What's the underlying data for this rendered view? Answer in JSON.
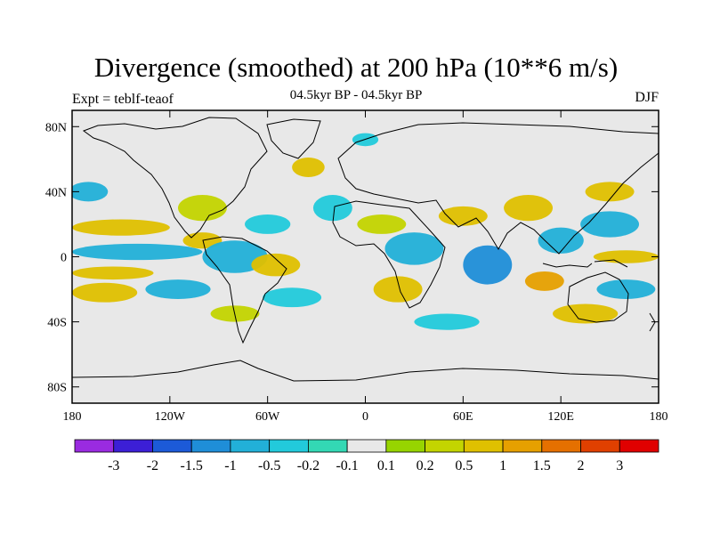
{
  "title": "Divergence (smoothed) at 200 hPa (10**6 m/s)",
  "left_label": "Expt = teblf-teaof",
  "center_label": "04.5kyr BP - 04.5kyr BP",
  "right_label": "DJF",
  "chart_data": {
    "type": "heatmap",
    "title": "Divergence (smoothed) at 200 hPa (10**6 m/s)",
    "xlim": [
      -180,
      180
    ],
    "ylim": [
      -90,
      90
    ],
    "y_ticks": [
      {
        "value": 80,
        "label": "80N"
      },
      {
        "value": 40,
        "label": "40N"
      },
      {
        "value": 0,
        "label": "0"
      },
      {
        "value": -40,
        "label": "40S"
      },
      {
        "value": -80,
        "label": "80S"
      }
    ],
    "x_ticks": [
      {
        "value": -180,
        "label": "180"
      },
      {
        "value": -120,
        "label": "120W"
      },
      {
        "value": -60,
        "label": "60W"
      },
      {
        "value": 0,
        "label": "0"
      },
      {
        "value": 60,
        "label": "60E"
      },
      {
        "value": 120,
        "label": "120E"
      },
      {
        "value": 180,
        "label": "180"
      }
    ],
    "colorbar": {
      "labels": [
        "-3",
        "-2",
        "-1.5",
        "-1",
        "-0.5",
        "-0.2",
        "-0.1",
        "0.1",
        "0.2",
        "0.5",
        "1",
        "1.5",
        "2",
        "3"
      ],
      "colors": [
        "#9a2be0",
        "#3c1fd6",
        "#1c5ad8",
        "#1f8ed8",
        "#22b0d8",
        "#22cadb",
        "#33d8b4",
        "#e8e8e8",
        "#97d400",
        "#c3d400",
        "#dfc000",
        "#e6a000",
        "#e57000",
        "#e04000",
        "#e00000"
      ]
    },
    "regions": [
      {
        "lon": -150,
        "lat": 18,
        "rx": 30,
        "ry": 5,
        "level": "0.5"
      },
      {
        "lon": -140,
        "lat": 3,
        "rx": 40,
        "ry": 5,
        "level": "-0.5"
      },
      {
        "lon": -155,
        "lat": -10,
        "rx": 25,
        "ry": 4,
        "level": "0.5"
      },
      {
        "lon": -160,
        "lat": -22,
        "rx": 20,
        "ry": 6,
        "level": "0.5"
      },
      {
        "lon": -170,
        "lat": 40,
        "rx": 12,
        "ry": 6,
        "level": "-0.5"
      },
      {
        "lon": -115,
        "lat": -20,
        "rx": 20,
        "ry": 6,
        "level": "-0.5"
      },
      {
        "lon": -100,
        "lat": 10,
        "rx": 12,
        "ry": 5,
        "level": "0.5"
      },
      {
        "lon": -80,
        "lat": 0,
        "rx": 20,
        "ry": 10,
        "level": "-0.5"
      },
      {
        "lon": -100,
        "lat": 30,
        "rx": 15,
        "ry": 8,
        "level": "0.2"
      },
      {
        "lon": -60,
        "lat": 20,
        "rx": 14,
        "ry": 6,
        "level": "-0.2"
      },
      {
        "lon": -55,
        "lat": -5,
        "rx": 15,
        "ry": 7,
        "level": "0.5"
      },
      {
        "lon": -45,
        "lat": -25,
        "rx": 18,
        "ry": 6,
        "level": "-0.2"
      },
      {
        "lon": -80,
        "lat": -35,
        "rx": 15,
        "ry": 5,
        "level": "0.2"
      },
      {
        "lon": -35,
        "lat": 55,
        "rx": 10,
        "ry": 6,
        "level": "0.5"
      },
      {
        "lon": 0,
        "lat": 72,
        "rx": 8,
        "ry": 4,
        "level": "-0.2"
      },
      {
        "lon": -20,
        "lat": 30,
        "rx": 12,
        "ry": 8,
        "level": "-0.2"
      },
      {
        "lon": 10,
        "lat": 20,
        "rx": 15,
        "ry": 6,
        "level": "0.2"
      },
      {
        "lon": 30,
        "lat": 5,
        "rx": 18,
        "ry": 10,
        "level": "-0.5"
      },
      {
        "lon": 20,
        "lat": -20,
        "rx": 15,
        "ry": 8,
        "level": "0.5"
      },
      {
        "lon": 50,
        "lat": -40,
        "rx": 20,
        "ry": 5,
        "level": "-0.2"
      },
      {
        "lon": 75,
        "lat": -5,
        "rx": 15,
        "ry": 12,
        "level": "-1"
      },
      {
        "lon": 60,
        "lat": 25,
        "rx": 15,
        "ry": 6,
        "level": "0.5"
      },
      {
        "lon": 100,
        "lat": 30,
        "rx": 15,
        "ry": 8,
        "level": "0.5"
      },
      {
        "lon": 120,
        "lat": 10,
        "rx": 14,
        "ry": 8,
        "level": "-0.5"
      },
      {
        "lon": 110,
        "lat": -15,
        "rx": 12,
        "ry": 6,
        "level": "1"
      },
      {
        "lon": 150,
        "lat": 20,
        "rx": 18,
        "ry": 8,
        "level": "-0.5"
      },
      {
        "lon": 160,
        "lat": 0,
        "rx": 20,
        "ry": 4,
        "level": "0.5"
      },
      {
        "lon": 160,
        "lat": -20,
        "rx": 18,
        "ry": 6,
        "level": "-0.5"
      },
      {
        "lon": 150,
        "lat": 40,
        "rx": 15,
        "ry": 6,
        "level": "0.5"
      },
      {
        "lon": 135,
        "lat": -35,
        "rx": 20,
        "ry": 6,
        "level": "0.5"
      }
    ]
  }
}
